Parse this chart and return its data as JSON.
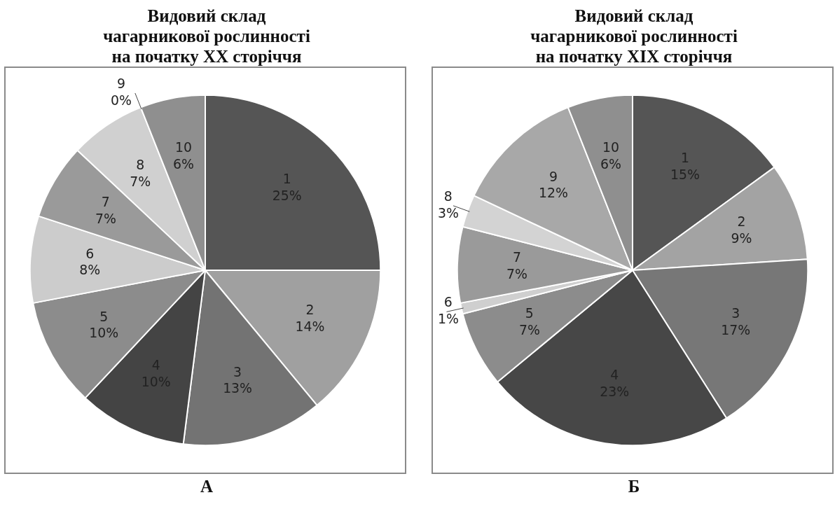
{
  "chart_data": [
    {
      "type": "pie",
      "title": "Видовий склад\nчагарникової рослинності\nна початку XX сторіччя",
      "categories": [
        "1",
        "2",
        "3",
        "4",
        "5",
        "6",
        "7",
        "8",
        "9",
        "10"
      ],
      "values": [
        25,
        14,
        13,
        10,
        10,
        8,
        7,
        7,
        0,
        6
      ],
      "colors": [
        "#555555",
        "#a0a0a0",
        "#737373",
        "#444444",
        "#8c8c8c",
        "#cccccc",
        "#9a9a9a",
        "#d0d0d0",
        "#b0b0b0",
        "#8f8f8f"
      ],
      "value_labels": [
        "25%",
        "14%",
        "13%",
        "10%",
        "10%",
        "8%",
        "7%",
        "7%",
        "0%",
        "6%"
      ],
      "legend": false,
      "annotations": [
        "А"
      ]
    },
    {
      "type": "pie",
      "title": "Видовий склад\nчагарникової рослинності\nна початку XIX сторіччя",
      "categories": [
        "1",
        "2",
        "3",
        "4",
        "5",
        "6",
        "7",
        "8",
        "9",
        "10"
      ],
      "values": [
        15,
        9,
        17,
        23,
        7,
        1,
        7,
        3,
        12,
        6
      ],
      "colors": [
        "#555555",
        "#a3a3a3",
        "#777777",
        "#474747",
        "#8c8c8c",
        "#cfcfcf",
        "#9a9a9a",
        "#d3d3d3",
        "#a8a8a8",
        "#8f8f8f"
      ],
      "value_labels": [
        "15%",
        "9%",
        "17%",
        "23%",
        "7%",
        "1%",
        "7%",
        "3%",
        "12%",
        "6%"
      ],
      "legend": false,
      "annotations": [
        "Б"
      ]
    }
  ]
}
